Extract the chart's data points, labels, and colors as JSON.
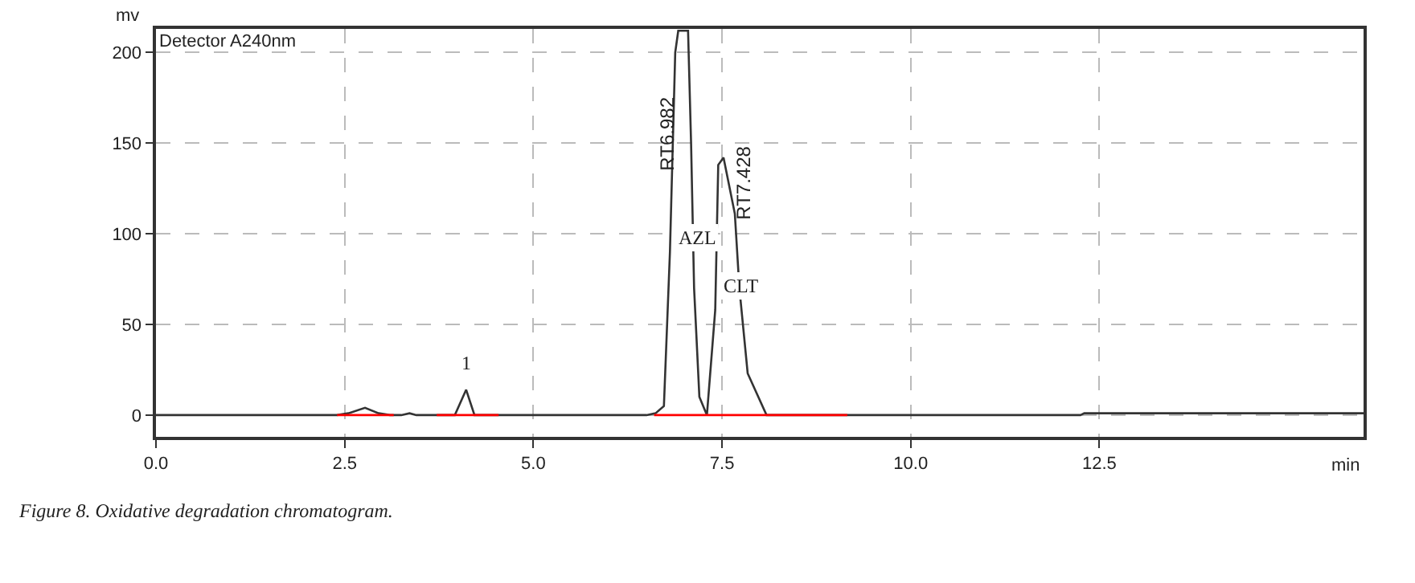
{
  "chart_data": {
    "type": "line",
    "xlabel": "min",
    "ylabel": "mv",
    "x": [
      0,
      2.4,
      2.55,
      2.77,
      2.95,
      3.1,
      3.25,
      3.36,
      3.45,
      3.96,
      4.11,
      4.22,
      6.5,
      6.62,
      6.73,
      6.81,
      6.88,
      6.92,
      7.05,
      7.09,
      7.13,
      7.2,
      7.3,
      7.41,
      7.45,
      7.52,
      7.67,
      7.73,
      7.84,
      8.09,
      12.25,
      12.3,
      16
    ],
    "series": [
      {
        "color": "#333333",
        "values": [
          0,
          0,
          1,
          4,
          1,
          0,
          0,
          1,
          0,
          0,
          14,
          0,
          0,
          1,
          5,
          90,
          200,
          212,
          212,
          150,
          70,
          10,
          0,
          58,
          138,
          142,
          111,
          70,
          23,
          0,
          0,
          1,
          1
        ]
      },
      {
        "color": "#ff0000",
        "x": [
          2.4,
          3.15
        ],
        "values": [
          0,
          0
        ]
      },
      {
        "color": "#ff0000",
        "x": [
          3.72,
          4.54
        ],
        "values": [
          0,
          0
        ]
      },
      {
        "color": "#ff0000",
        "x": [
          6.6,
          9.16
        ],
        "values": [
          0,
          0
        ]
      }
    ],
    "xlim": [
      0,
      16
    ],
    "ylim": [
      -12,
      213
    ],
    "xticks": [
      {
        "value": 0,
        "label": "0.0"
      },
      {
        "value": 2.5,
        "label": "2.5"
      },
      {
        "value": 5,
        "label": "5.0"
      },
      {
        "value": 7.5,
        "label": "7.5"
      },
      {
        "value": 10,
        "label": "10.0"
      },
      {
        "value": 12.5,
        "label": "12.5"
      }
    ],
    "yticks": [
      0,
      50,
      100,
      150,
      200
    ],
    "grid": true,
    "marker": "none",
    "line_style": "solid",
    "annotations": [
      "Detector A240nm",
      {
        "text": "1",
        "x": 4.11,
        "y": 14
      },
      "RT6.982",
      "AZL",
      "RT7.428",
      "CLT",
      "Figure 8. Oxidative degradation chromatogram."
    ]
  }
}
